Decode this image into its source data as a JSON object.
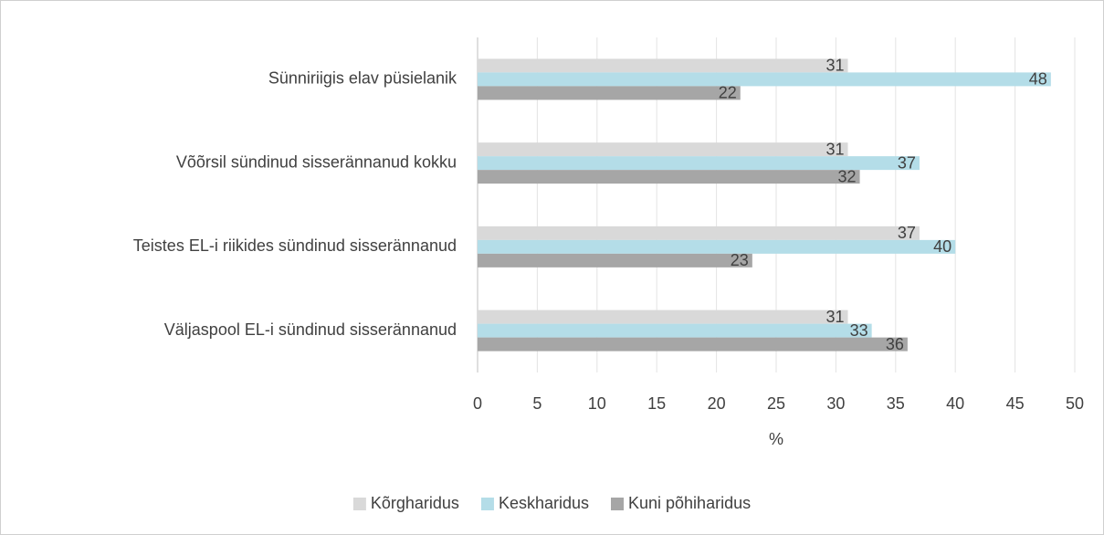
{
  "chart_data": {
    "type": "hbar",
    "categories": [
      "Sünniriigis elav püsielanik",
      "Võõrsil sündinud sisserännanud kokku",
      "Teistes EL-i riikides sündinud sisserännanud",
      "Väljaspool EL-i sündinud sisserännanud"
    ],
    "series": [
      {
        "name": "Kõrgharidus",
        "color": "#d9d9d9",
        "values": [
          31,
          31,
          37,
          31
        ]
      },
      {
        "name": "Keskharidus",
        "color": "#b4dde8",
        "values": [
          48,
          37,
          40,
          33
        ]
      },
      {
        "name": "Kuni põhiharidus",
        "color": "#a6a6a6",
        "values": [
          22,
          32,
          23,
          36
        ]
      }
    ],
    "x_label": "%",
    "xlim": [
      0,
      50
    ],
    "xticks": [
      0,
      5,
      10,
      15,
      20,
      25,
      30,
      35,
      40,
      45,
      50
    ],
    "grid": true,
    "legend": "bottom"
  }
}
